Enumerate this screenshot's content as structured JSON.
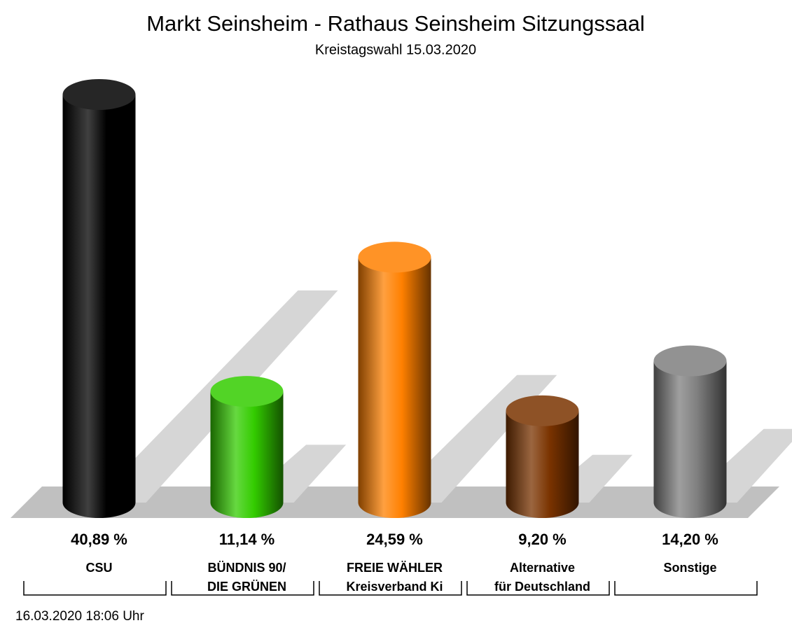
{
  "chart_data": {
    "type": "cylinder_bar",
    "title": "Markt Seinsheim - Rathaus Seinsheim Sitzungssaal",
    "subtitle": "Kreistagswahl 15.03.2020",
    "categories": [
      [
        "CSU"
      ],
      [
        "BÜNDNIS 90/",
        "DIE GRÜNEN"
      ],
      [
        "FREIE WÄHLER",
        "Kreisverband Ki"
      ],
      [
        "Alternative",
        "für Deutschland"
      ],
      [
        "Sonstige"
      ]
    ],
    "values": [
      40.89,
      11.14,
      24.59,
      9.2,
      14.2
    ],
    "value_labels": [
      "40,89 %",
      "11,14 %",
      "24,59 %",
      "9,20 %",
      "14,20 %"
    ],
    "colors": [
      "#000000",
      "#33cc00",
      "#ff8000",
      "#7a3300",
      "#7f7f7f"
    ],
    "footer": "16.03.2020 18:06 Uhr"
  }
}
